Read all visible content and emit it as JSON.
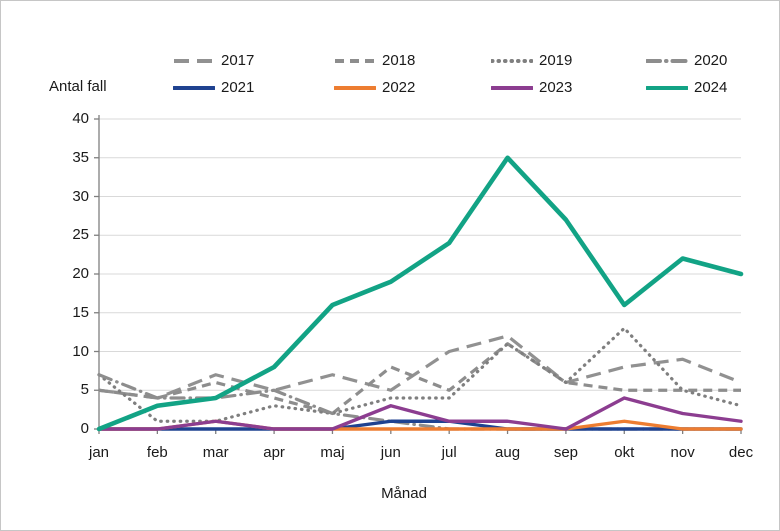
{
  "chart_data": {
    "type": "line",
    "title": "",
    "xlabel": "Månad",
    "ylabel": "Antal fall",
    "categories": [
      "jan",
      "feb",
      "mar",
      "apr",
      "maj",
      "jun",
      "jul",
      "aug",
      "sep",
      "okt",
      "nov",
      "dec"
    ],
    "ylim": [
      0,
      40
    ],
    "ytick_step": 5,
    "yticks": [
      0,
      5,
      10,
      15,
      20,
      25,
      30,
      35,
      40
    ],
    "grid": true,
    "legend_position": "top",
    "series": [
      {
        "name": "2017",
        "color": "#919191",
        "dash": "long-dash",
        "width": 3.2,
        "values": [
          5,
          4,
          7,
          5,
          7,
          5,
          10,
          12,
          6,
          8,
          9,
          6
        ]
      },
      {
        "name": "2018",
        "color": "#8d8d8d",
        "dash": "dash",
        "width": 3.2,
        "values": [
          5,
          4,
          6,
          4,
          2,
          8,
          5,
          11,
          6,
          5,
          5,
          5
        ]
      },
      {
        "name": "2019",
        "color": "#7f7f7f",
        "dash": "dot",
        "width": 3.2,
        "values": [
          7,
          1,
          1,
          3,
          2,
          4,
          4,
          11,
          6,
          13,
          5,
          3
        ]
      },
      {
        "name": "2020",
        "color": "#8d8d8d",
        "dash": "dash-dot",
        "width": 3.2,
        "values": [
          7,
          4,
          4,
          5,
          2,
          1,
          0,
          0,
          0,
          0,
          0,
          0
        ]
      },
      {
        "name": "2021",
        "color": "#1f4290",
        "dash": "solid",
        "width": 3.4,
        "values": [
          0,
          0,
          0,
          0,
          0,
          1,
          1,
          0,
          0,
          0,
          0,
          0
        ]
      },
      {
        "name": "2022",
        "color": "#ed7d31",
        "dash": "solid",
        "width": 3.4,
        "values": [
          0,
          0,
          1,
          0,
          0,
          0,
          0,
          0,
          0,
          1,
          0,
          0
        ]
      },
      {
        "name": "2023",
        "color": "#8c3d90",
        "dash": "solid",
        "width": 3.4,
        "values": [
          0,
          0,
          1,
          0,
          0,
          3,
          1,
          1,
          0,
          4,
          2,
          1
        ]
      },
      {
        "name": "2024",
        "color": "#12a385",
        "dash": "solid",
        "width": 4.6,
        "values": [
          0,
          3,
          4,
          8,
          16,
          19,
          24,
          35,
          27,
          16,
          22,
          20
        ]
      }
    ],
    "colors": {
      "grid": "#d9d9d9",
      "axis": "#7f7f7f",
      "text": "#1a1a1a",
      "background": "#ffffff"
    }
  }
}
